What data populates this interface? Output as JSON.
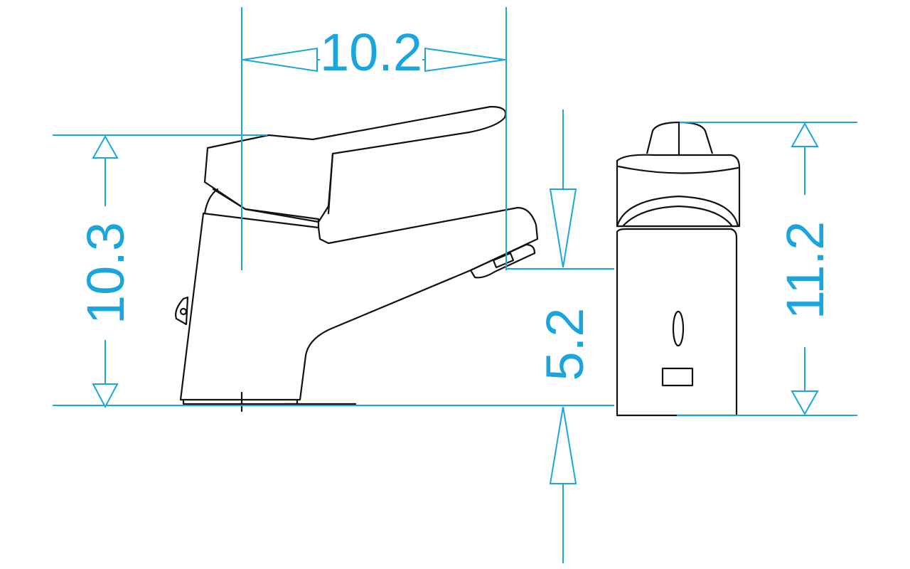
{
  "colors": {
    "dimension": "#1aa6dd",
    "outline": "#111111",
    "background": "#ffffff"
  },
  "dimensions": {
    "spout_reach": "10.2",
    "body_height": "10.3",
    "spout_height": "5.2",
    "overall_height": "11.2"
  }
}
